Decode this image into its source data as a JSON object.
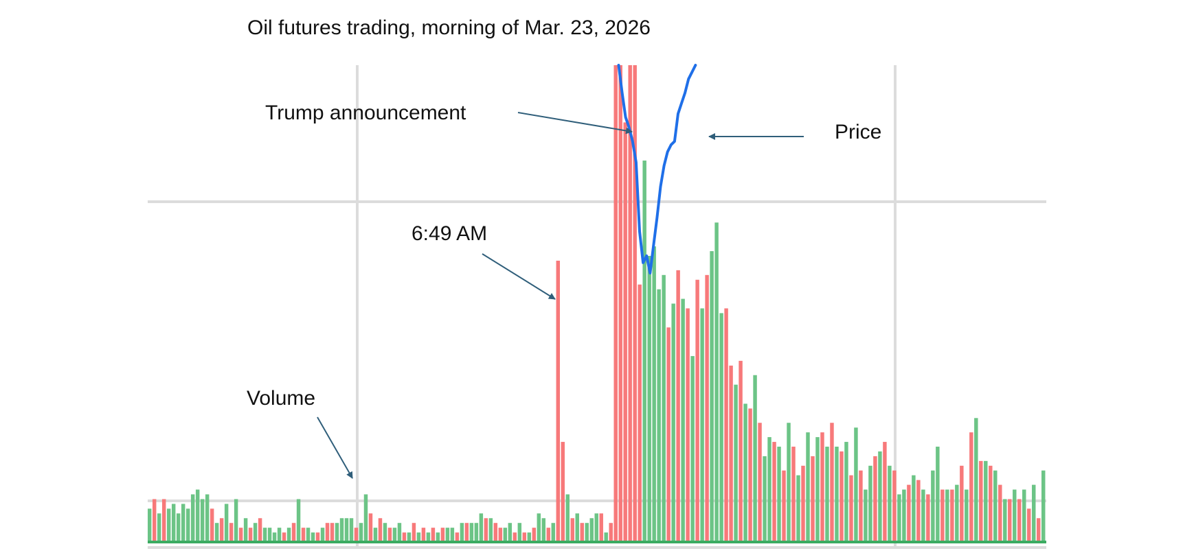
{
  "chart_data": {
    "type": "bar",
    "title": "Oil futures trading, morning of Mar. 23, 2026",
    "xlabel": "",
    "ylabel": "",
    "grid": true,
    "colors": {
      "up": "#6cc486",
      "down": "#f7797a",
      "price": "#1f6fe8",
      "grid": "#dcdcdc",
      "arrow": "#2f5e7a"
    },
    "volume_ylim": [
      0,
      100
    ],
    "series": [
      {
        "name": "Volume",
        "type": "bar",
        "values": [
          7,
          9,
          6,
          9,
          7,
          8,
          6,
          8,
          7,
          10,
          11,
          9,
          10,
          7,
          4,
          5,
          8,
          4,
          9,
          3,
          5,
          3,
          4,
          5,
          3,
          3,
          2,
          3,
          2,
          3,
          4,
          9,
          3,
          3,
          2,
          2,
          3,
          4,
          4,
          4,
          5,
          5,
          5,
          3,
          4,
          10,
          6,
          3,
          5,
          4,
          3,
          3,
          4,
          2,
          2,
          4,
          2,
          3,
          2,
          3,
          2,
          3,
          3,
          3,
          2,
          4,
          4,
          4,
          4,
          6,
          5,
          5,
          4,
          3,
          3,
          4,
          2,
          4,
          2,
          2,
          3,
          6,
          5,
          3,
          4,
          59,
          21,
          10,
          5,
          6,
          4,
          4,
          5,
          6,
          6,
          2,
          4,
          100,
          100,
          88,
          100,
          100,
          54,
          80,
          60,
          62,
          53,
          56,
          45,
          50,
          57,
          51,
          49,
          39,
          55,
          49,
          56,
          61,
          67,
          48,
          49,
          37,
          33,
          38,
          29,
          28,
          35,
          25,
          18,
          22,
          21,
          20,
          15,
          25,
          20,
          14,
          16,
          23,
          18,
          22,
          23,
          20,
          25,
          20,
          19,
          21,
          14,
          24,
          15,
          11,
          16,
          18,
          19,
          21,
          16,
          15,
          10,
          11,
          12,
          14,
          13,
          11,
          10,
          15,
          20,
          11,
          11,
          11,
          12,
          16,
          11,
          23,
          26,
          17,
          17,
          16,
          15,
          12,
          9,
          9,
          11,
          9,
          11,
          7,
          12,
          5,
          15
        ]
      },
      {
        "name": "Price",
        "type": "line",
        "values": [
          100,
          92,
          85,
          82,
          78,
          72,
          52,
          43,
          45,
          40,
          48,
          56,
          65,
          71,
          75,
          77,
          78,
          86,
          89,
          92,
          96,
          98,
          100
        ]
      }
    ],
    "bar_colors": [
      "up",
      "down",
      "up",
      "down",
      "up",
      "up",
      "up",
      "up",
      "up",
      "up",
      "up",
      "up",
      "up",
      "down",
      "up",
      "down",
      "up",
      "down",
      "up",
      "down",
      "up",
      "down",
      "up",
      "down",
      "up",
      "up",
      "up",
      "up",
      "down",
      "up",
      "down",
      "up",
      "down",
      "up",
      "up",
      "down",
      "up",
      "down",
      "down",
      "up",
      "up",
      "up",
      "up",
      "down",
      "up",
      "up",
      "down",
      "up",
      "down",
      "up",
      "down",
      "up",
      "up",
      "down",
      "up",
      "down",
      "up",
      "down",
      "up",
      "down",
      "up",
      "down",
      "up",
      "up",
      "down",
      "up",
      "down",
      "up",
      "up",
      "up",
      "down",
      "up",
      "down",
      "down",
      "up",
      "up",
      "down",
      "up",
      "down",
      "up",
      "down",
      "up",
      "up",
      "down",
      "up",
      "down",
      "down",
      "up",
      "down",
      "up",
      "down",
      "up",
      "up",
      "up",
      "down",
      "up",
      "down",
      "down",
      "down",
      "down",
      "down",
      "down",
      "down",
      "up",
      "up",
      "up",
      "up",
      "up",
      "down",
      "up",
      "down",
      "up",
      "down",
      "up",
      "down",
      "up",
      "down",
      "up",
      "up",
      "up",
      "down",
      "down",
      "up",
      "down",
      "up",
      "down",
      "up",
      "down",
      "up",
      "up",
      "down",
      "up",
      "down",
      "up",
      "down",
      "up",
      "down",
      "up",
      "down",
      "up",
      "down",
      "up",
      "down",
      "up",
      "down",
      "up",
      "down",
      "up",
      "down",
      "up",
      "up",
      "down",
      "up",
      "down",
      "up",
      "down",
      "up",
      "up",
      "down",
      "up",
      "down",
      "up",
      "down",
      "up",
      "up",
      "down",
      "up",
      "down",
      "up",
      "down",
      "up",
      "down",
      "up",
      "down",
      "up",
      "down",
      "up",
      "down",
      "up",
      "down",
      "up",
      "down",
      "up",
      "down",
      "up",
      "down",
      "up"
    ],
    "annotations": [
      {
        "text": "Trump announcement",
        "points_to": "first volume spike (price jump)"
      },
      {
        "text": "Price",
        "points_to": "price line"
      },
      {
        "text": "6:49 AM",
        "points_to": "early volume spike"
      },
      {
        "text": "Volume",
        "points_to": "volume bars"
      }
    ]
  }
}
